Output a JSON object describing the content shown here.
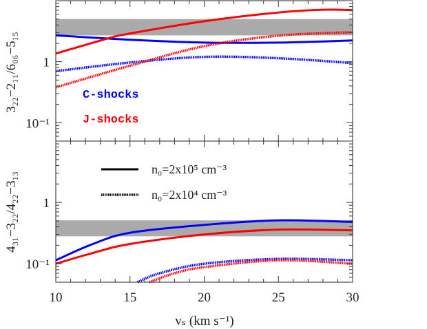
{
  "chart_data": [
    {
      "type": "line",
      "panel": "top",
      "ylabel": "3₂₂−2₁₁/6₀₆−5₁₅",
      "xlim": [
        10,
        30
      ],
      "ylim": [
        0.05,
        10
      ],
      "yscale": "log",
      "y_tick_labels": [
        {
          "value": 1,
          "label": "1"
        },
        {
          "value": 0.1,
          "label": "10⁻¹"
        }
      ],
      "shaded_band": {
        "range": [
          2.7,
          5.0
        ],
        "color": "#aaaaaa"
      },
      "annotations": [
        {
          "text": "C-shocks",
          "color": "#0000ff"
        },
        {
          "text": "J-shocks",
          "color": "#ff0000"
        }
      ],
      "series": [
        {
          "shock": "C",
          "density": "2x10^5",
          "style": "solid",
          "color": "#0000ff",
          "x": [
            10,
            15,
            20,
            25,
            30
          ],
          "y": [
            2.7,
            2.29,
            2.06,
            2.06,
            2.23
          ]
        },
        {
          "shock": "J",
          "density": "2x10^5",
          "style": "solid",
          "color": "#ff0000",
          "x": [
            10,
            13.5,
            15,
            20,
            25,
            28,
            30
          ],
          "y": [
            1.36,
            2.4,
            2.9,
            4.6,
            6.4,
            7.1,
            7.0
          ]
        },
        {
          "shock": "C",
          "density": "2x10^4",
          "style": "dotted",
          "color": "#0000ff",
          "x": [
            10,
            15,
            20,
            25,
            30
          ],
          "y": [
            0.7,
            0.97,
            1.2,
            1.14,
            0.95
          ]
        },
        {
          "shock": "J",
          "density": "2x10^4",
          "style": "dotted",
          "color": "#ff0000",
          "x": [
            10,
            15,
            20,
            25,
            30
          ],
          "y": [
            0.38,
            0.86,
            1.8,
            2.67,
            3.04
          ]
        }
      ]
    },
    {
      "type": "line",
      "panel": "bottom",
      "ylabel": "4₃₁−3₂₂/4₂₂−3₁₃",
      "xlabel": "vₛ (km s⁻¹)",
      "xlim": [
        10,
        30
      ],
      "x_tick_labels": [
        "10",
        "15",
        "20",
        "25",
        "30"
      ],
      "ylim": [
        0.05,
        10
      ],
      "yscale": "log",
      "y_tick_labels": [
        {
          "value": 1,
          "label": "1"
        },
        {
          "value": 0.1,
          "label": "10⁻¹"
        }
      ],
      "shaded_band": {
        "range": [
          0.28,
          0.51
        ],
        "color": "#aaaaaa"
      },
      "legend": {
        "placement": "top-left",
        "entries": [
          {
            "label": "n₀=2x10⁵ cm⁻³",
            "style": "solid"
          },
          {
            "label": "n₀=2x10⁴ cm⁻³",
            "style": "dotted"
          }
        ]
      },
      "series": [
        {
          "shock": "C",
          "density": "2x10^5",
          "style": "solid",
          "color": "#0000ff",
          "x": [
            10,
            12.5,
            15,
            20,
            25,
            30
          ],
          "y": [
            0.114,
            0.21,
            0.32,
            0.43,
            0.51,
            0.48
          ]
        },
        {
          "shock": "J",
          "density": "2x10^5",
          "style": "solid",
          "color": "#ff0000",
          "x": [
            10,
            12.5,
            15,
            20,
            25,
            30
          ],
          "y": [
            0.1,
            0.15,
            0.21,
            0.3,
            0.36,
            0.35
          ]
        },
        {
          "shock": "C",
          "density": "2x10^4",
          "style": "dotted",
          "color": "#0000ff",
          "x": [
            15.5,
            17,
            20,
            25,
            30
          ],
          "y": [
            0.05,
            0.07,
            0.1,
            0.12,
            0.114
          ]
        },
        {
          "shock": "J",
          "density": "2x10^4",
          "style": "dotted",
          "color": "#ff0000",
          "x": [
            16.3,
            18,
            20,
            25,
            30
          ],
          "y": [
            0.05,
            0.07,
            0.088,
            0.114,
            0.1
          ]
        }
      ]
    }
  ]
}
